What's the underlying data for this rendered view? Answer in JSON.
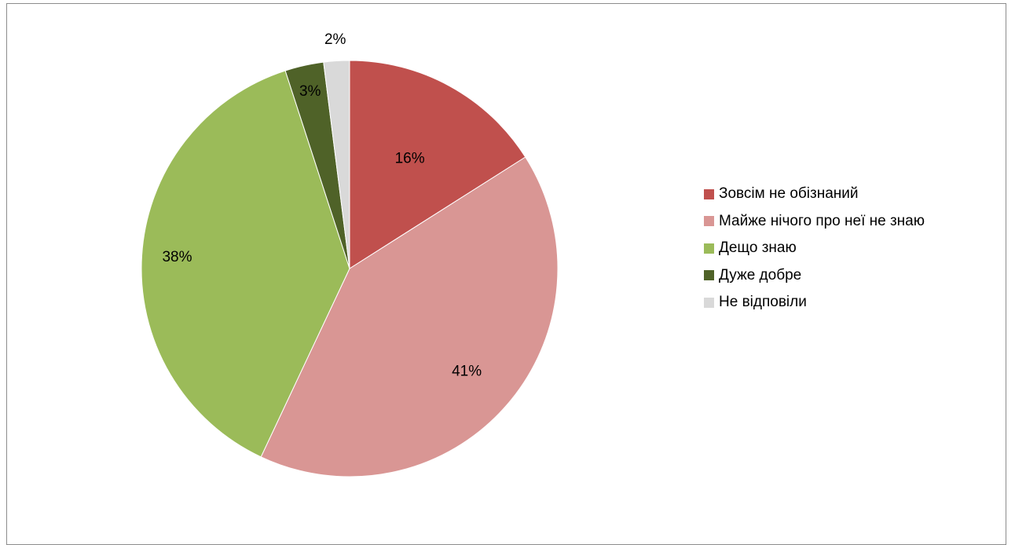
{
  "chart_data": {
    "type": "pie",
    "title": "",
    "categories": [
      "Зовсім не обізнаний",
      "Майже нічого про неї не знаю",
      "Дещо знаю",
      "Дуже добре",
      "Не відповіли"
    ],
    "values": [
      16,
      41,
      38,
      3,
      2
    ],
    "data_labels": [
      "16%",
      "41%",
      "38%",
      "3%",
      "2%"
    ],
    "colors": [
      "#c0504d",
      "#d99694",
      "#9bbb59",
      "#4f6228",
      "#d9d9d9"
    ],
    "legend_position": "right",
    "start_angle": "12 o'clock",
    "direction": "clockwise"
  }
}
